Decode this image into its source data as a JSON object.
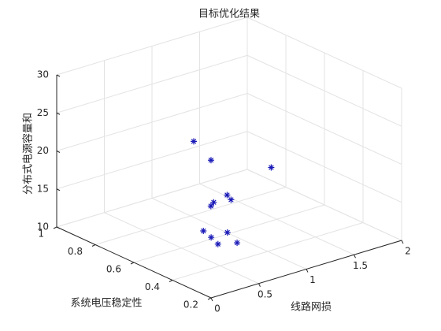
{
  "chart_data": {
    "type": "scatter3d",
    "title": "目标优化结果",
    "x_label": "线路网损",
    "y_label": "系统电压稳定性",
    "z_label": "分布式电源容量和",
    "xlim": [
      0,
      2
    ],
    "xticks": [
      0,
      0.5,
      1,
      1.5,
      2
    ],
    "ylim": [
      0.2,
      1
    ],
    "yticks": [
      0.2,
      0.4,
      0.6,
      0.8,
      1
    ],
    "zlim": [
      10,
      30
    ],
    "zticks": [
      10,
      15,
      20,
      25,
      30
    ],
    "grid": true,
    "color": "#1a1ab8",
    "x": [
      0.79,
      0.85,
      1.34,
      1.1,
      1.06,
      1.02,
      0.95,
      0.77,
      0.73,
      0.68,
      0.9,
      0.82
    ],
    "y": [
      0.68,
      0.62,
      0.55,
      0.66,
      0.62,
      0.69,
      0.67,
      0.62,
      0.56,
      0.5,
      0.56,
      0.47
    ],
    "z": [
      22,
      20,
      18,
      14,
      14,
      13,
      13,
      11,
      11,
      11,
      11,
      11
    ]
  }
}
